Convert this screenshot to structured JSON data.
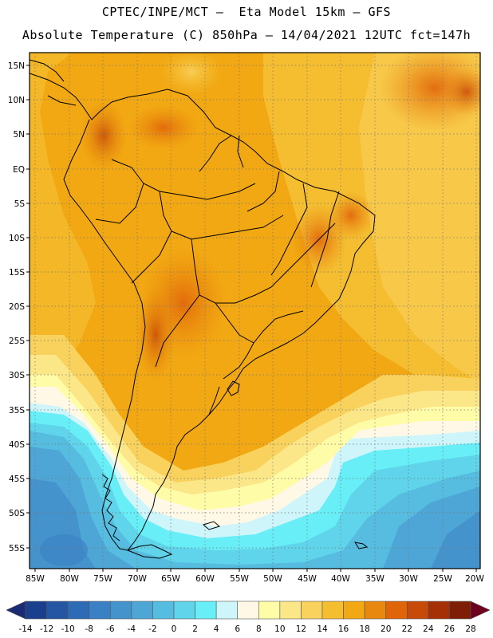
{
  "header": {
    "line1": "CPTEC/INPE/MCT –  Eta Model 15km – GFS",
    "line2": "Absolute Temperature (C) 850hPa – 14/04/2021 12UTC fct=147h"
  },
  "axes": {
    "lat_labels": [
      "15N",
      "10N",
      "5N",
      "EQ",
      "5S",
      "10S",
      "15S",
      "20S",
      "25S",
      "30S",
      "35S",
      "40S",
      "45S",
      "50S",
      "55S"
    ],
    "lon_labels": [
      "85W",
      "80W",
      "75W",
      "70W",
      "65W",
      "60W",
      "55W",
      "50W",
      "45W",
      "40W",
      "35W",
      "30W",
      "25W",
      "20W"
    ]
  },
  "colorbar": {
    "labels": [
      "-14",
      "-12",
      "-10",
      "-8",
      "-6",
      "-4",
      "-2",
      "0",
      "2",
      "4",
      "6",
      "8",
      "10",
      "12",
      "14",
      "16",
      "18",
      "20",
      "22",
      "24",
      "26",
      "28"
    ],
    "colors": [
      "#1a3f8c",
      "#2456a4",
      "#2e6bb6",
      "#3a80c4",
      "#4493cc",
      "#4ea6d6",
      "#56bde0",
      "#5fd4ea",
      "#67eef6",
      "#cdf5fa",
      "#fff8e6",
      "#fffca8",
      "#fbe688",
      "#f9d25e",
      "#f5be30",
      "#f2a812",
      "#e8880e",
      "#e0640a",
      "#c84a08",
      "#a63006",
      "#7e1e06"
    ],
    "below_color": "#1a2a74",
    "above_color": "#6e0020"
  }
}
